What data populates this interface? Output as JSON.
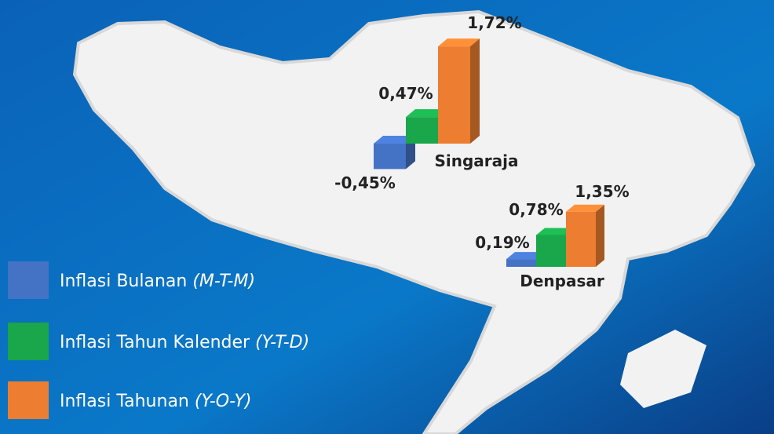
{
  "chart_data": {
    "type": "bar3d",
    "categories": [
      "Singaraja",
      "Denpasar"
    ],
    "series": [
      {
        "name": "Inflasi  Bulanan (M-T-M)",
        "color": "#4472c4",
        "values": [
          -0.45,
          0.19
        ],
        "value_labels": [
          "-0,45%",
          "0,19%"
        ]
      },
      {
        "name": "Inflasi  Tahun Kalender (Y-T-D)",
        "color": "#1aa64a",
        "values": [
          0.47,
          0.78
        ],
        "value_labels": [
          "0,47%",
          "0,78%"
        ]
      },
      {
        "name": "Inflasi  Tahunan (Y-O-Y)",
        "color": "#ed7d31",
        "values": [
          1.72,
          1.35
        ],
        "value_labels": [
          "1,72%",
          "1,35%"
        ]
      }
    ]
  }
}
